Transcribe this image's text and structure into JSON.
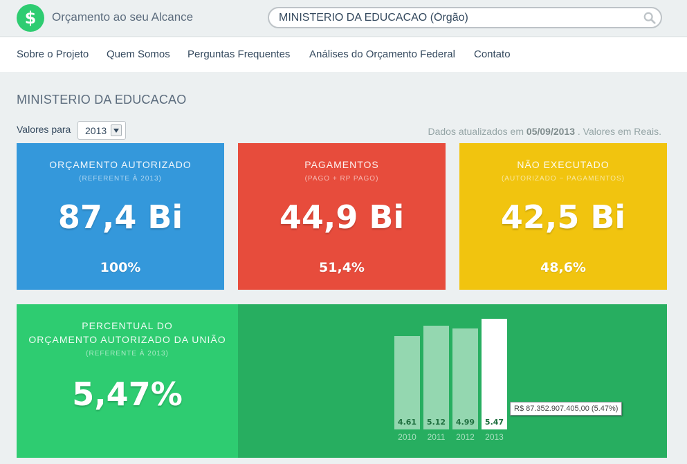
{
  "header": {
    "logo_icon": "dollar-icon",
    "brand": "Orçamento ao seu Alcance",
    "search": {
      "value": "MINISTERIO DA EDUCACAO (Órgão)",
      "icon": "search-icon"
    }
  },
  "nav": {
    "items": [
      {
        "label": "Sobre o Projeto"
      },
      {
        "label": "Quem Somos"
      },
      {
        "label": "Perguntas Frequentes"
      },
      {
        "label": "Análises do Orçamento Federal"
      },
      {
        "label": "Contato"
      }
    ]
  },
  "main": {
    "title": "MINISTERIO DA EDUCACAO",
    "year_label": "Valores para",
    "year_selected": "2013",
    "updated_prefix": "Dados atualizados em",
    "updated_date": "05/09/2013",
    "updated_suffix": ". Valores em Reais."
  },
  "cards": [
    {
      "title": "ORÇAMENTO AUTORIZADO",
      "subtitle": "(REFERENTE À 2013)",
      "value": "87,4 Bi",
      "percent": "100%",
      "color": "#3498db"
    },
    {
      "title": "PAGAMENTOS",
      "subtitle": "(PAGO + RP PAGO)",
      "value": "44,9 Bi",
      "percent": "51,4%",
      "color": "#e74c3c"
    },
    {
      "title": "NÃO EXECUTADO",
      "subtitle": "(AUTORIZADO − PAGAMENTOS)",
      "value": "42,5 Bi",
      "percent": "48,6%",
      "color": "#f1c40f"
    }
  ],
  "union_share": {
    "title_line1": "PERCENTUAL DO",
    "title_line2": "ORÇAMENTO AUTORIZADO DA UNIÃO",
    "subtitle": "(REFERENTE À 2013)",
    "value": "5,47%",
    "tooltip": "R$ 87.352.907.405,00 (5.47%)"
  },
  "chart_data": {
    "type": "bar",
    "categories": [
      "2010",
      "2011",
      "2012",
      "2013"
    ],
    "values": [
      4.61,
      5.12,
      4.99,
      5.47
    ],
    "value_labels": [
      "4.61",
      "5.12",
      "4.99",
      "5.47"
    ],
    "highlighted": "2013",
    "colors": {
      "bar": "#94d7b0",
      "highlight": "#ffffff",
      "background": "#27ae60"
    }
  }
}
